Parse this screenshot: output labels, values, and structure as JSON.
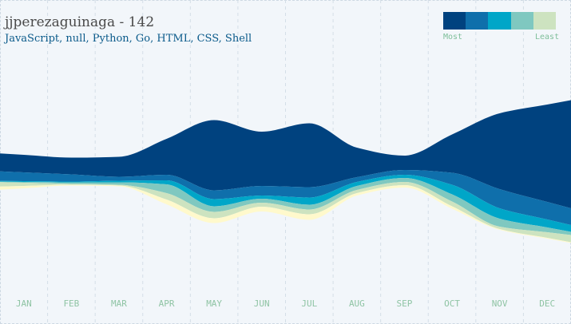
{
  "header": {
    "title": "jjperezaguinaga - 142",
    "subtitle": "JavaScript, null, Python, Go, HTML, CSS, Shell"
  },
  "legend": {
    "most_label": "Most",
    "least_label": "Least",
    "colors": [
      "#00427f",
      "#0f6fab",
      "#00a6c8",
      "#7fc8c0",
      "#cde3c0",
      "#fff9cc"
    ]
  },
  "chart_data": {
    "type": "area",
    "layout": "streamgraph",
    "categories": [
      "JAN",
      "FEB",
      "MAR",
      "APR",
      "MAY",
      "JUN",
      "JUL",
      "AUG",
      "SEP",
      "OCT",
      "NOV",
      "DEC"
    ],
    "series": [
      {
        "color": "#00427f",
        "values": [
          2.2,
          2.1,
          2.5,
          4.5,
          8.8,
          6.8,
          8.0,
          3.7,
          1.8,
          4.8,
          9.5,
          12.2
        ]
      },
      {
        "color": "#0f6fab",
        "values": [
          1.1,
          0.9,
          0.5,
          0.7,
          1.1,
          1.2,
          1.3,
          0.6,
          0.6,
          1.5,
          2.4,
          2.2
        ]
      },
      {
        "color": "#00a6c8",
        "values": [
          0.1,
          0.1,
          0.2,
          0.5,
          0.9,
          0.4,
          0.9,
          0.5,
          0.4,
          1.2,
          1.3,
          1.0
        ]
      },
      {
        "color": "#7fc8c0",
        "values": [
          0.1,
          0.2,
          0.3,
          1.1,
          0.7,
          0.5,
          0.6,
          0.5,
          0.5,
          0.9,
          1.0,
          0.6
        ]
      },
      {
        "color": "#cde3c0",
        "values": [
          0.4,
          0.1,
          0.1,
          0.8,
          0.8,
          0.5,
          0.6,
          0.4,
          0.4,
          0.6,
          0.3,
          0.7
        ]
      },
      {
        "color": "#fff9cc",
        "values": [
          0.3,
          0.1,
          0.1,
          0.6,
          0.6,
          0.6,
          0.7,
          0.3,
          0.3,
          0.3,
          0.1,
          0.1
        ]
      }
    ],
    "grid": true
  }
}
